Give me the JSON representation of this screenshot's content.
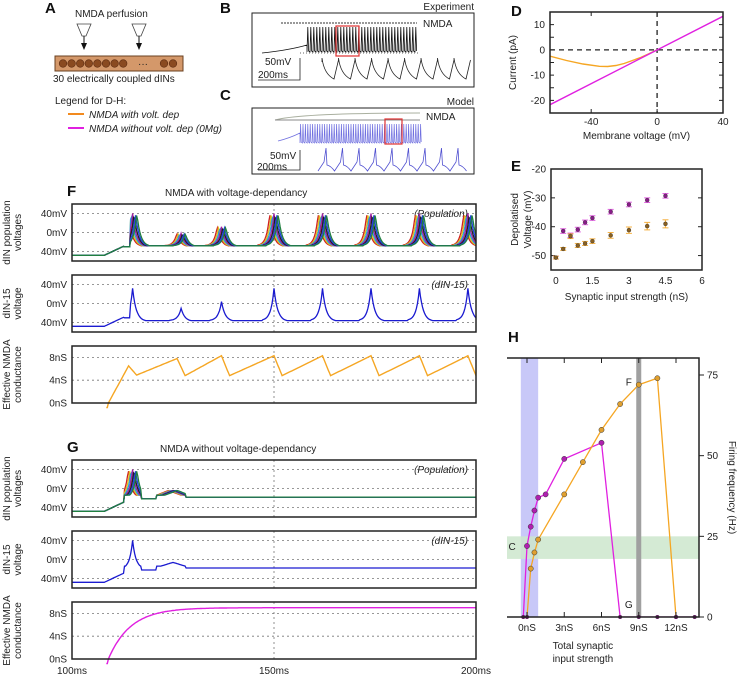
{
  "panels": {
    "A": {
      "label": "A",
      "title": "NMDA perfusion",
      "caption": "30 electrically coupled dINs",
      "ellipsis": "···",
      "legend_title": "Legend for D-H:",
      "legend": [
        {
          "label": "NMDA with volt. dep",
          "color": "#f28a1e"
        },
        {
          "label": "NMDA without volt. dep (0Mg)",
          "color": "#e020e0"
        }
      ]
    },
    "B": {
      "label": "B",
      "title": "Experiment",
      "drug": "NMDA",
      "scale_v": "50mV",
      "scale_t": "200ms"
    },
    "C": {
      "label": "C",
      "title": "Model",
      "drug": "NMDA",
      "scale_v": "50mV",
      "scale_t": "200ms"
    },
    "F": {
      "label": "F",
      "title": "NMDA with voltage-dependancy"
    },
    "G": {
      "label": "G",
      "title": "NMDA without voltage-dependancy"
    },
    "H": {
      "label": "H"
    }
  },
  "colors": {
    "with_vdep": "#f5a623",
    "without_vdep": "#e020e0",
    "din15": "#1a1ad0",
    "blue_band": "#c8c8f8",
    "green_band": "#cde6cd",
    "grey_band": "#a0a0a0"
  },
  "chart_data": [
    {
      "id": "D",
      "type": "line",
      "title": "",
      "xlabel": "Membrane voltage (mV)",
      "ylabel": "Current (pA)",
      "xlim": [
        -65,
        40
      ],
      "ylim": [
        -25,
        15
      ],
      "xticks": [
        -40,
        0,
        40
      ],
      "yticks": [
        -20,
        -10,
        0,
        10
      ],
      "series": [
        {
          "name": "NMDA with volt. dep",
          "color": "#f5a623",
          "x": [
            -65,
            -55,
            -45,
            -35,
            -30,
            -25,
            -20,
            -15,
            -10,
            -5,
            0
          ],
          "y": [
            -2.5,
            -4.2,
            -5.6,
            -6.5,
            -6.6,
            -6.2,
            -5.4,
            -4.2,
            -3.0,
            -1.5,
            0
          ]
        },
        {
          "name": "NMDA without volt. dep (0Mg)",
          "color": "#e020e0",
          "x": [
            -65,
            40
          ],
          "y": [
            -21.7,
            13.3
          ]
        }
      ],
      "reference_lines": {
        "x": 0,
        "y": 0
      }
    },
    {
      "id": "E",
      "type": "scatter",
      "xlabel": "Synaptic input strength (nS)",
      "ylabel": "Depolatised Voltage (mV)",
      "xlim": [
        -0.2,
        6
      ],
      "ylim": [
        -55,
        -20
      ],
      "xticks": [
        0,
        1.5,
        3,
        4.5,
        6
      ],
      "xtick_labels": [
        "0",
        "1.5",
        "3",
        "4.5",
        "6"
      ],
      "yticks": [
        -50,
        -40,
        -30,
        -20
      ],
      "series": [
        {
          "name": "NMDA without volt. dep (0Mg)",
          "color": "#b020b0",
          "x": [
            0,
            0.3,
            0.6,
            0.9,
            1.2,
            1.5,
            2.25,
            3.0,
            3.75,
            4.5
          ],
          "y": [
            -50.7,
            -41.5,
            -43.0,
            -41.0,
            -38.5,
            -37.0,
            -34.8,
            -32.3,
            -30.8,
            -29.3
          ],
          "err": [
            0.5,
            0.8,
            0.8,
            0.8,
            0.8,
            0.8,
            0.8,
            0.8,
            0.8,
            0.8
          ]
        },
        {
          "name": "NMDA with volt. dep",
          "color": "#f5a623",
          "x": [
            0,
            0.3,
            0.6,
            0.9,
            1.2,
            1.5,
            2.25,
            3.0,
            3.75,
            4.5
          ],
          "y": [
            -50.7,
            -47.7,
            -43.3,
            -46.5,
            -45.8,
            -45.0,
            -43.0,
            -41.2,
            -39.8,
            -39.0
          ],
          "err": [
            0.5,
            0.5,
            0.8,
            0.7,
            0.7,
            0.8,
            1.0,
            1.1,
            1.3,
            1.4
          ]
        }
      ]
    },
    {
      "id": "F",
      "type": "line",
      "title": "NMDA with voltage-dependancy",
      "xlim": [
        100,
        200
      ],
      "subplots": [
        {
          "ylabel": "dIN population voltages",
          "yticks": [
            -40,
            0,
            40
          ],
          "ytick_labels": [
            "40mV",
            "0mV",
            "40mV"
          ],
          "annotation": "(Population)",
          "ylim": [
            -60,
            60
          ]
        },
        {
          "ylabel": "dIN-15 voltage",
          "yticks": [
            -40,
            0,
            40
          ],
          "ytick_labels": [
            "40mV",
            "0mV",
            "40mV"
          ],
          "annotation": "(dIN-15)",
          "ylim": [
            -60,
            60
          ],
          "spike_times_ms": [
            115,
            127,
            137,
            150,
            162,
            174,
            186
          ]
        },
        {
          "ylabel": "Effective NMDA conductance",
          "yticks": [
            0,
            4,
            8
          ],
          "ytick_labels": [
            "0nS",
            "4nS",
            "8nS"
          ],
          "ylim": [
            0,
            10
          ]
        }
      ]
    },
    {
      "id": "G",
      "type": "line",
      "title": "NMDA without voltage-dependancy",
      "xlim": [
        100,
        200
      ],
      "xticks": [
        100,
        150,
        200
      ],
      "xtick_labels": [
        "100ms",
        "150ms",
        "200ms"
      ],
      "subplots": [
        {
          "ylabel": "dIN population voltages",
          "yticks": [
            -40,
            0,
            40
          ],
          "ytick_labels": [
            "40mV",
            "0mV",
            "40mV"
          ],
          "annotation": "(Population)",
          "ylim": [
            -60,
            60
          ]
        },
        {
          "ylabel": "dIN-15 voltage",
          "yticks": [
            -40,
            0,
            40
          ],
          "ytick_labels": [
            "40mV",
            "0mV",
            "40mV"
          ],
          "annotation": "(dIN-15)",
          "ylim": [
            -60,
            60
          ]
        },
        {
          "ylabel": "Effective NMDA conductance",
          "yticks": [
            0,
            4,
            8
          ],
          "ytick_labels": [
            "0nS",
            "4nS",
            "8nS"
          ],
          "ylim": [
            0,
            10
          ],
          "plateau_nS": 9
        }
      ]
    },
    {
      "id": "H",
      "type": "line",
      "xlabel": "Total synaptic input strength",
      "ylabel": "Firing frequency (Hz)",
      "xlim": [
        -2.5,
        14
      ],
      "ylim": [
        0,
        80
      ],
      "xticks": [
        0,
        3,
        6,
        9,
        12
      ],
      "xtick_labels": [
        "0nS",
        "3nS",
        "6nS",
        "9nS",
        "12nS"
      ],
      "yticks": [
        0,
        25,
        50,
        75
      ],
      "bands": {
        "blue_x": [
          -0.5,
          0.9
        ],
        "green_y": [
          18,
          25
        ],
        "grey_x": 9
      },
      "annotations": [
        {
          "text": "F",
          "x": 8.2,
          "y": 73
        },
        {
          "text": "C",
          "x": -1.2,
          "y": 22
        },
        {
          "text": "G",
          "x": 8.2,
          "y": 4
        }
      ],
      "series": [
        {
          "name": "NMDA without volt. dep (0Mg)",
          "color": "#e020e0",
          "x": [
            -0.3,
            0.0,
            0.3,
            0.6,
            0.9,
            1.5,
            3.0,
            6.0,
            7.5,
            9.0,
            10.5,
            12.0,
            13.5
          ],
          "y": [
            0,
            22,
            28,
            33,
            37,
            38,
            49,
            54,
            0,
            0,
            0,
            0,
            0
          ]
        },
        {
          "name": "NMDA with volt. dep",
          "color": "#f5a623",
          "x": [
            0.0,
            0.3,
            0.6,
            0.9,
            3.0,
            4.5,
            6.0,
            7.5,
            9.0,
            10.5,
            12.0
          ],
          "y": [
            0,
            15,
            20,
            24,
            38,
            48,
            58,
            66,
            72,
            74,
            0
          ]
        }
      ]
    }
  ]
}
